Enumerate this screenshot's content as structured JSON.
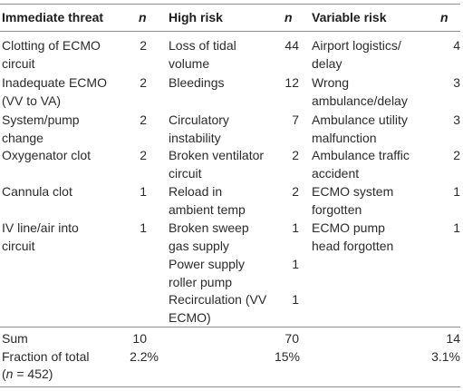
{
  "table": {
    "headers": {
      "col1": "Immediate threat",
      "n1": "n",
      "col2": "High risk",
      "n2": "n",
      "col3": "Variable risk",
      "n3": "n"
    },
    "rows": [
      {
        "c1": [
          "Clotting of ECMO",
          "circuit"
        ],
        "n1": "2",
        "c2": [
          "Loss of tidal",
          "volume"
        ],
        "n2": "44",
        "c3": [
          "Airport logistics/",
          "delay"
        ],
        "n3": "4"
      },
      {
        "c1": [
          "Inadequate ECMO",
          "(VV to VA)"
        ],
        "n1": "2",
        "c2": [
          "Bleedings"
        ],
        "n2": "12",
        "c3": [
          "Wrong",
          "ambulance/delay"
        ],
        "n3": "3"
      },
      {
        "c1": [
          "System/pump",
          "change"
        ],
        "n1": "2",
        "c2": [
          "Circulatory",
          "instability"
        ],
        "n2": "7",
        "c3": [
          "Ambulance utility",
          "malfunction"
        ],
        "n3": "3"
      },
      {
        "c1": [
          "Oxygenator clot"
        ],
        "n1": "2",
        "c2": [
          "Broken ventilator",
          "circuit"
        ],
        "n2": "2",
        "c3": [
          "Ambulance traffic",
          "accident"
        ],
        "n3": "2"
      },
      {
        "c1": [
          "Cannula clot"
        ],
        "n1": "1",
        "c2": [
          "Reload in",
          "ambient temp"
        ],
        "n2": "2",
        "c3": [
          "ECMO system",
          "forgotten"
        ],
        "n3": "1"
      },
      {
        "c1": [
          "IV line/air into",
          "circuit"
        ],
        "n1": "1",
        "c2": [
          "Broken sweep",
          "gas supply"
        ],
        "n2": "1",
        "c3": [
          "ECMO pump",
          "head forgotten"
        ],
        "n3": "1"
      },
      {
        "c1": [],
        "n1": "",
        "c2": [
          "Power supply",
          "roller pump"
        ],
        "n2": "1",
        "c3": [],
        "n3": ""
      },
      {
        "c1": [],
        "n1": "",
        "c2": [
          "Recirculation (VV",
          "ECMO)"
        ],
        "n2": "1",
        "c3": [],
        "n3": ""
      }
    ],
    "sum": {
      "label": "Sum",
      "v1": "10",
      "v2": "70",
      "v3": "14"
    },
    "fraction": {
      "label_line1": "Fraction of total",
      "label_line2_open": "(",
      "label_line2_n": "n",
      "label_line2_rest": " = 452)",
      "v1": "2.2%",
      "v2": "15%",
      "v3": "3.1%"
    }
  }
}
